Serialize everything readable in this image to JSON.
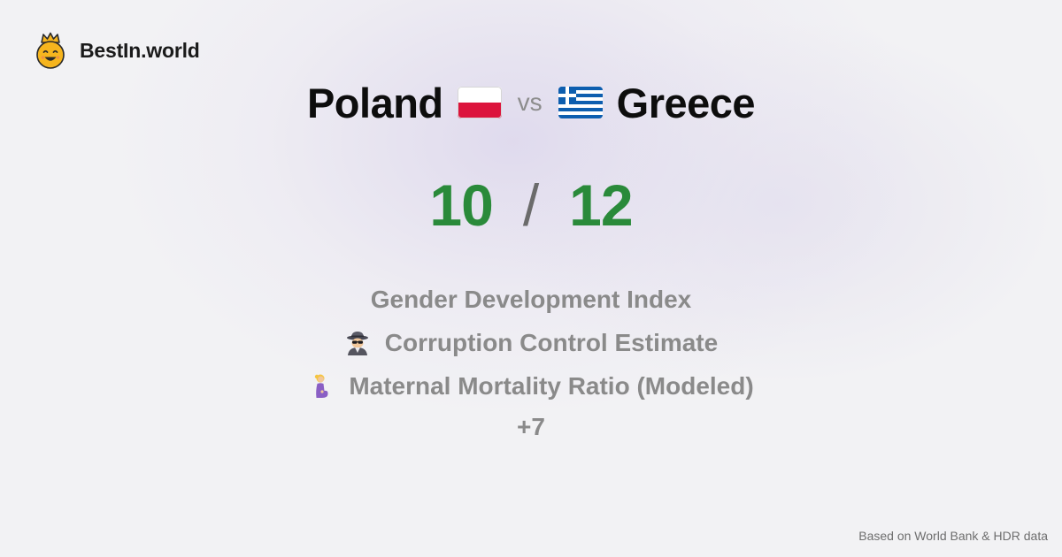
{
  "brand": {
    "name": "BestIn.world",
    "icon": "crowned-smiley-icon"
  },
  "comparison": {
    "left_country": "Poland",
    "left_flag": "poland-flag-icon",
    "vs_label": "vs",
    "right_country": "Greece",
    "right_flag": "greece-flag-icon"
  },
  "scores": {
    "left": "10",
    "separator": "/",
    "right": "12",
    "color": "#2a8a3a"
  },
  "metrics": [
    {
      "label": "Gender Development Index",
      "icon": ""
    },
    {
      "label": "Corruption Control Estimate",
      "icon": "spy-icon"
    },
    {
      "label": "Maternal Mortality Ratio (Modeled)",
      "icon": "pregnant-woman-icon"
    }
  ],
  "more_label": "+7",
  "footer": {
    "source": "Based on World Bank & HDR data"
  }
}
